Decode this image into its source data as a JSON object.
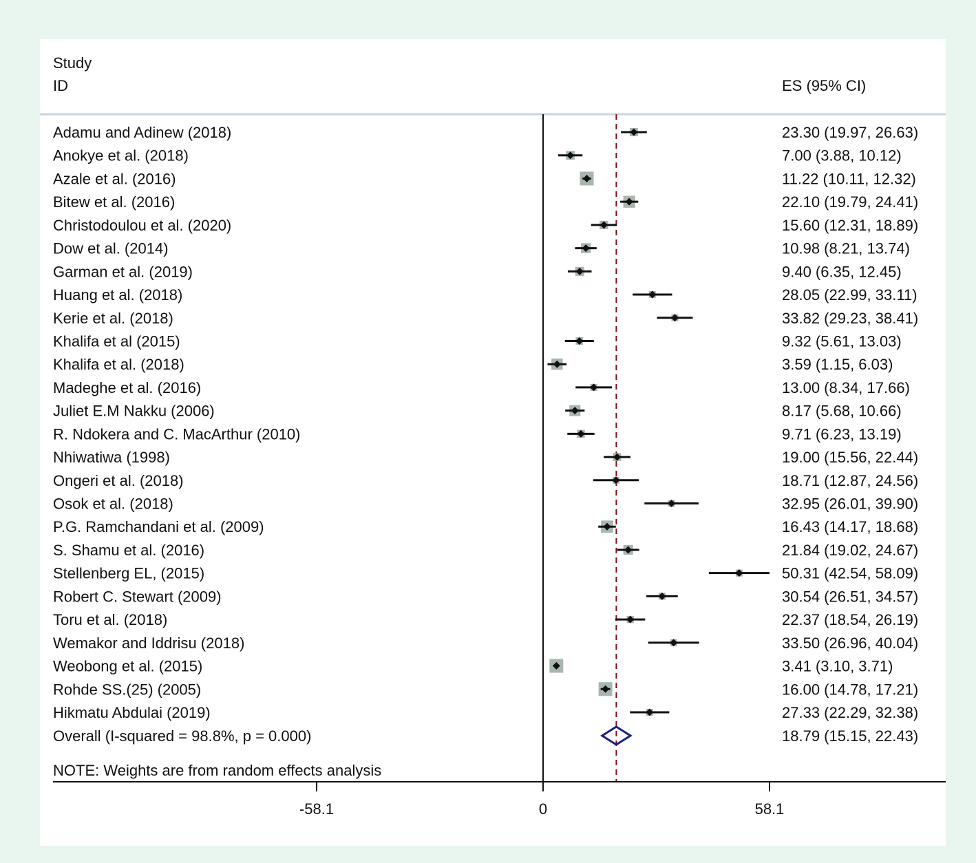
{
  "chart_data": {
    "type": "forest",
    "header": {
      "col1_line1": "Study",
      "col1_line2": "ID",
      "col2": "ES (95% CI)"
    },
    "studies": [
      {
        "label": "Adamu and Adinew (2018)",
        "es": 23.3,
        "lo": 19.97,
        "hi": 26.63,
        "es_text": "23.30 (19.97, 26.63)"
      },
      {
        "label": "Anokye et al. (2018)",
        "es": 7.0,
        "lo": 3.88,
        "hi": 10.12,
        "es_text": "7.00 (3.88, 10.12)"
      },
      {
        "label": "Azale et al.  (2016)",
        "es": 11.22,
        "lo": 10.11,
        "hi": 12.32,
        "es_text": "11.22 (10.11, 12.32)"
      },
      {
        "label": "Bitew et al. (2016)",
        "es": 22.1,
        "lo": 19.79,
        "hi": 24.41,
        "es_text": "22.10 (19.79, 24.41)"
      },
      {
        "label": "Christodoulou et al. (2020)",
        "es": 15.6,
        "lo": 12.31,
        "hi": 18.89,
        "es_text": "15.60 (12.31, 18.89)"
      },
      {
        "label": "Dow et al. (2014)",
        "es": 10.98,
        "lo": 8.21,
        "hi": 13.74,
        "es_text": "10.98 (8.21, 13.74)"
      },
      {
        "label": "Garman et al.  (2019)",
        "es": 9.4,
        "lo": 6.35,
        "hi": 12.45,
        "es_text": "9.40 (6.35, 12.45)"
      },
      {
        "label": "Huang et al. (2018)",
        "es": 28.05,
        "lo": 22.99,
        "hi": 33.11,
        "es_text": "28.05 (22.99, 33.11)"
      },
      {
        "label": "Kerie et al. (2018)",
        "es": 33.82,
        "lo": 29.23,
        "hi": 38.41,
        "es_text": "33.82 (29.23, 38.41)"
      },
      {
        "label": "Khalifa et al (2015)",
        "es": 9.32,
        "lo": 5.61,
        "hi": 13.03,
        "es_text": "9.32 (5.61, 13.03)"
      },
      {
        "label": "Khalifa et al. (2018)",
        "es": 3.59,
        "lo": 1.15,
        "hi": 6.03,
        "es_text": "3.59 (1.15, 6.03)"
      },
      {
        "label": "Madeghe et al. (2016)",
        "es": 13.0,
        "lo": 8.34,
        "hi": 17.66,
        "es_text": "13.00 (8.34, 17.66)"
      },
      {
        "label": "Juliet E.M Nakku (2006)",
        "es": 8.17,
        "lo": 5.68,
        "hi": 10.66,
        "es_text": "8.17 (5.68, 10.66)"
      },
      {
        "label": "R. Ndokera and C. MacArthur (2010)",
        "es": 9.71,
        "lo": 6.23,
        "hi": 13.19,
        "es_text": "9.71 (6.23, 13.19)"
      },
      {
        "label": "Nhiwatiwa (1998)",
        "es": 19.0,
        "lo": 15.56,
        "hi": 22.44,
        "es_text": "19.00 (15.56, 22.44)"
      },
      {
        "label": "Ongeri et al.  (2018)",
        "es": 18.71,
        "lo": 12.87,
        "hi": 24.56,
        "es_text": "18.71 (12.87, 24.56)"
      },
      {
        "label": "Osok et al. (2018)",
        "es": 32.95,
        "lo": 26.01,
        "hi": 39.9,
        "es_text": "32.95 (26.01, 39.90)"
      },
      {
        "label": "P.G. Ramchandani et al. (2009)",
        "es": 16.43,
        "lo": 14.17,
        "hi": 18.68,
        "es_text": "16.43 (14.17, 18.68)"
      },
      {
        "label": "S. Shamu et al. (2016)",
        "es": 21.84,
        "lo": 19.02,
        "hi": 24.67,
        "es_text": "21.84 (19.02, 24.67)"
      },
      {
        "label": "Stellenberg EL, (2015)",
        "es": 50.31,
        "lo": 42.54,
        "hi": 58.09,
        "es_text": "50.31 (42.54, 58.09)"
      },
      {
        "label": "Robert C. Stewart (2009)",
        "es": 30.54,
        "lo": 26.51,
        "hi": 34.57,
        "es_text": "30.54 (26.51, 34.57)"
      },
      {
        "label": "Toru et al. (2018)",
        "es": 22.37,
        "lo": 18.54,
        "hi": 26.19,
        "es_text": "22.37 (18.54, 26.19)"
      },
      {
        "label": "Wemakor and Iddrisu  (2018)",
        "es": 33.5,
        "lo": 26.96,
        "hi": 40.04,
        "es_text": "33.50 (26.96, 40.04)"
      },
      {
        "label": "Weobong et al. (2015)",
        "es": 3.41,
        "lo": 3.1,
        "hi": 3.71,
        "es_text": "3.41 (3.10, 3.71)"
      },
      {
        "label": "Rohde SS.(25) (2005)",
        "es": 16.0,
        "lo": 14.78,
        "hi": 17.21,
        "es_text": "16.00 (14.78, 17.21)"
      },
      {
        "label": "Hikmatu Abdulai (2019)",
        "es": 27.33,
        "lo": 22.29,
        "hi": 32.38,
        "es_text": "27.33 (22.29, 32.38)"
      }
    ],
    "overall": {
      "label": "Overall  (I-squared = 98.8%, p = 0.000)",
      "es": 18.79,
      "lo": 15.15,
      "hi": 22.43,
      "es_text": "18.79 (15.15, 22.43)"
    },
    "note": "NOTE: Weights are from random effects analysis",
    "x_ticks": [
      {
        "value": -58.1,
        "label": "-58.1"
      },
      {
        "value": 0,
        "label": "0"
      },
      {
        "value": 58.1,
        "label": "58.1"
      }
    ],
    "xlim": [
      -58.1,
      58.1
    ],
    "null_line": 0,
    "colors": {
      "background": "#e9f6ef",
      "panel": "#ffffff",
      "ci_line": "#111111",
      "weight_box": "#a9b6ae",
      "point": "#111111",
      "overall_line": "#7a1010",
      "overall_diamond": "#1c1c8a",
      "header_rule": "#c7d6e6"
    }
  }
}
